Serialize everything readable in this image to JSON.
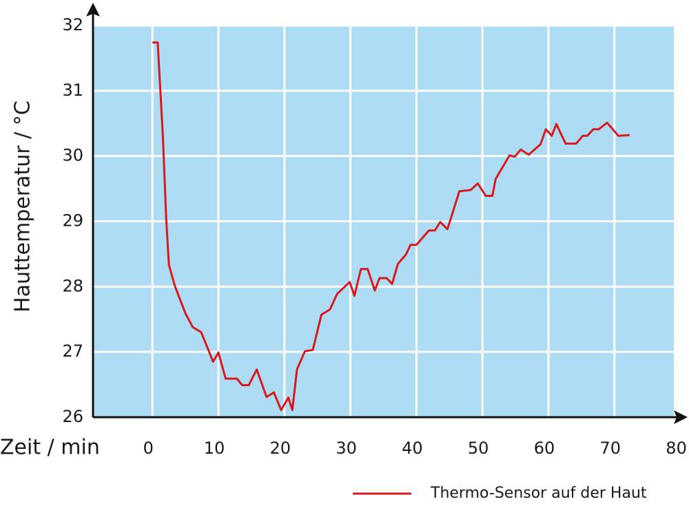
{
  "chart_data": {
    "type": "line",
    "x_label": "Zeit / min",
    "y_label": "Hauttemperatur / °C",
    "xlim": [
      -9,
      79
    ],
    "ylim": [
      26,
      32
    ],
    "xticks": [
      0,
      10,
      20,
      30,
      40,
      50,
      60,
      70,
      80
    ],
    "yticks": [
      26,
      27,
      28,
      29,
      30,
      31,
      32
    ],
    "grid": true,
    "background": "#aedcf5",
    "legend": "bottom-right",
    "series": [
      {
        "name": "Thermo-Sensor auf der Haut",
        "color": "#d7191c",
        "x": [
          0,
          0.8,
          1.6,
          2.1,
          2.5,
          3.4,
          5.0,
          6.1,
          7.4,
          9.2,
          10,
          11.1,
          12.8,
          13.6,
          14.6,
          15.8,
          17.3,
          18.4,
          19.5,
          20.6,
          21.2,
          21.9,
          23.1,
          24.3,
          25.6,
          26.9,
          28,
          29.9,
          30.6,
          31.6,
          32.6,
          33.7,
          34.4,
          35.5,
          36.3,
          37.2,
          38.4,
          39.1,
          40,
          41.9,
          42.8,
          43.6,
          44.7,
          46.5,
          48.2,
          49.3,
          50.5,
          51.5,
          52,
          54.1,
          54.9,
          55.8,
          57,
          58.8,
          59.6,
          60.5,
          61.2,
          62.6,
          64.2,
          65.2,
          65.9,
          66.8,
          67.6,
          68.9,
          70.6,
          72.3
        ],
        "values": [
          31.74,
          31.74,
          30.28,
          29.02,
          28.33,
          28.01,
          27.59,
          27.38,
          27.3,
          26.85,
          26.99,
          26.59,
          26.59,
          26.49,
          26.49,
          26.73,
          26.31,
          26.38,
          26.11,
          26.3,
          26.11,
          26.73,
          27.01,
          27.03,
          27.57,
          27.65,
          27.89,
          28.07,
          27.86,
          28.27,
          28.27,
          27.94,
          28.13,
          28.13,
          28.04,
          28.35,
          28.49,
          28.64,
          28.64,
          28.86,
          28.86,
          28.99,
          28.88,
          29.46,
          29.48,
          29.58,
          29.39,
          29.39,
          29.65,
          30.01,
          29.99,
          30.1,
          30.02,
          30.18,
          30.41,
          30.31,
          30.49,
          30.19,
          30.19,
          30.31,
          30.31,
          30.41,
          30.41,
          30.51,
          30.31,
          30.32
        ]
      }
    ]
  }
}
